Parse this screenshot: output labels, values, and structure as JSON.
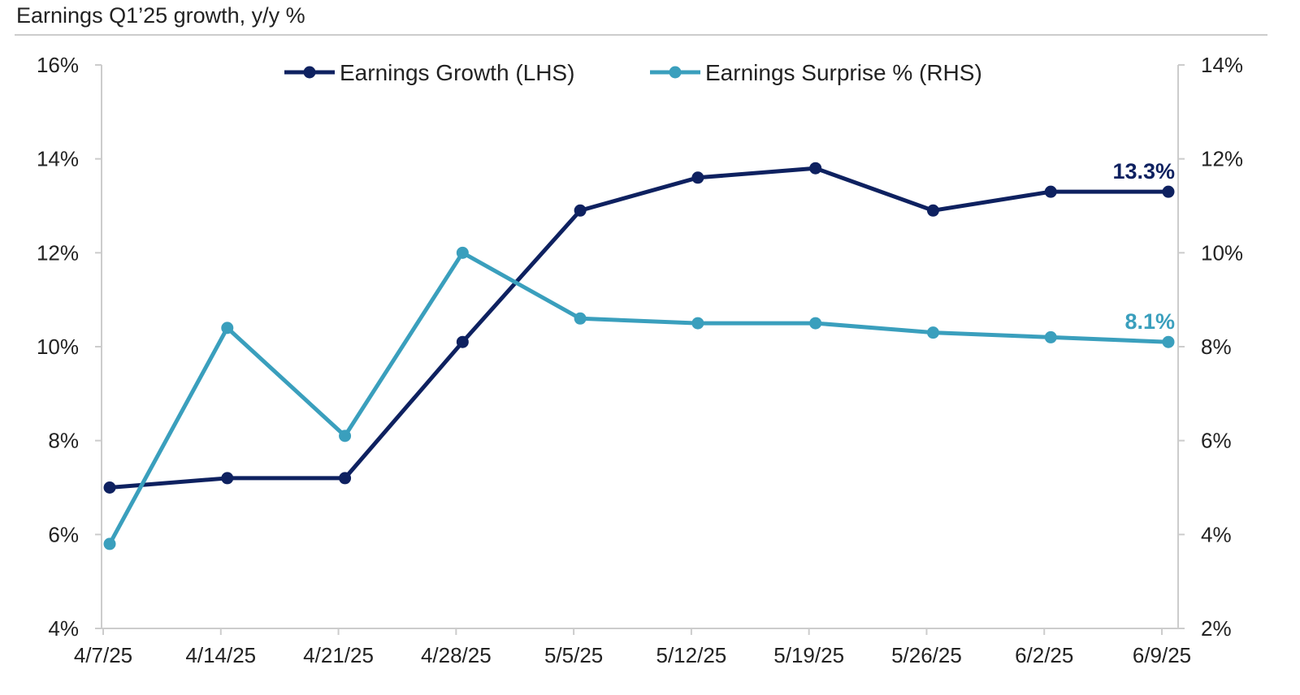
{
  "chart_data": {
    "type": "line",
    "title": "Earnings Q1’25 growth, y/y %",
    "categories": [
      "4/7/25",
      "4/14/25",
      "4/21/25",
      "4/28/25",
      "5/5/25",
      "5/12/25",
      "5/19/25",
      "5/26/25",
      "6/2/25",
      "6/9/25"
    ],
    "series": [
      {
        "name": "Earnings Growth (LHS)",
        "axis": "left",
        "color": "#0e2160",
        "values": [
          7.0,
          7.2,
          7.2,
          10.1,
          12.9,
          13.6,
          13.8,
          12.9,
          13.3,
          13.3
        ],
        "end_label": "13.3%"
      },
      {
        "name": "Earnings Surprise % (RHS)",
        "axis": "right",
        "color": "#3a9fbd",
        "values": [
          3.8,
          8.4,
          6.1,
          10.0,
          8.6,
          8.5,
          8.5,
          8.3,
          8.2,
          8.1
        ],
        "end_label": "8.1%"
      }
    ],
    "left_axis": {
      "ylim": [
        4,
        16
      ],
      "ticks": [
        "4%",
        "6%",
        "8%",
        "10%",
        "12%",
        "14%",
        "16%"
      ]
    },
    "right_axis": {
      "ylim": [
        2,
        14
      ],
      "ticks": [
        "2%",
        "4%",
        "6%",
        "8%",
        "10%",
        "12%",
        "14%"
      ]
    },
    "grid": false,
    "legend": "top-center"
  }
}
